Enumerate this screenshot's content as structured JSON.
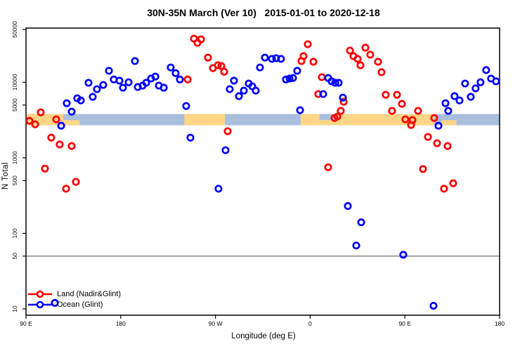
{
  "title": "30N-35N March (Ver 10)   2015-01-01 to 2020-12-18",
  "legend": {
    "items": [
      {
        "label": "Land (Nadir&Glint)",
        "color": "#ff0000"
      },
      {
        "label": "Ocean (Glint)",
        "color": "#0000ff"
      }
    ]
  },
  "chart_data": {
    "type": "scatter",
    "title": "30N-35N March (Ver 10)   2015-01-01 to 2020-12-18",
    "xlabel": "Longitude (deg E)",
    "ylabel": "N Total",
    "yscale": "log",
    "ylim": [
      8.2,
      52000
    ],
    "x_axis": {
      "range_deg": [
        90,
        540
      ],
      "tick_degs": [
        90,
        180,
        270,
        360,
        450,
        540
      ],
      "tick_labels": [
        "90 E",
        "180",
        "90 W",
        "0",
        "90 E",
        "180"
      ]
    },
    "y_axis": {
      "tick_values": [
        10,
        50,
        100,
        500,
        1000,
        5000,
        10000,
        50000
      ],
      "tick_labels": [
        "10",
        "50",
        "100",
        "500",
        "1000",
        "5000",
        "10000",
        "50000"
      ]
    },
    "reference_line": {
      "value": 50,
      "color": "#7a7a7a"
    },
    "land_ocean_band": {
      "description": "land/ocean coverage strip for 30N-35N",
      "value_low": 2700,
      "value_high": 3800,
      "ocean_color": "#a9bfdd",
      "land_color": "#ffd685",
      "land_segments": [
        {
          "deg_start": 90,
          "deg_end": 125.5,
          "part": "full"
        },
        {
          "deg_start": 125.5,
          "deg_end": 141,
          "part": "bottom"
        },
        {
          "deg_start": 240.5,
          "deg_end": 279,
          "part": "full"
        },
        {
          "deg_start": 351,
          "deg_end": 478,
          "part": "full"
        },
        {
          "deg_start": 485,
          "deg_end": 499,
          "part": "bottom"
        }
      ],
      "ocean_notches": [
        {
          "deg_start": 369,
          "deg_end": 386,
          "part": "top"
        }
      ]
    },
    "series": [
      {
        "name": "Land (Nadir&Glint)",
        "color": "#ff0000",
        "points": [
          [
            93.3,
            3090
          ],
          [
            98.7,
            2780
          ],
          [
            104,
            4000
          ],
          [
            118.7,
            3230
          ],
          [
            114,
            1850
          ],
          [
            122,
            1500
          ],
          [
            133.4,
            1430
          ],
          [
            108,
            720
          ],
          [
            128.1,
            390
          ],
          [
            137.4,
            480
          ],
          [
            249.6,
            37800
          ],
          [
            256.3,
            37000
          ],
          [
            252.9,
            33300
          ],
          [
            262.9,
            21200
          ],
          [
            267.6,
            15400
          ],
          [
            272.3,
            16800
          ],
          [
            275.6,
            16400
          ],
          [
            278.3,
            13800
          ],
          [
            243.6,
            10900
          ],
          [
            281.6,
            2250
          ],
          [
            357.7,
            31900
          ],
          [
            353.7,
            22200
          ],
          [
            351.7,
            19100
          ],
          [
            363.1,
            18700
          ],
          [
            371.1,
            11700
          ],
          [
            367.7,
            6980
          ],
          [
            391.8,
            5520
          ],
          [
            389.1,
            4180
          ],
          [
            385.8,
            3520
          ],
          [
            383.1,
            3370
          ],
          [
            377.1,
            750
          ],
          [
            397.8,
            26300
          ],
          [
            412.5,
            28700
          ],
          [
            401.1,
            22200
          ],
          [
            405.1,
            20400
          ],
          [
            417.1,
            23200
          ],
          [
            407.8,
            16800
          ],
          [
            424.5,
            18700
          ],
          [
            427.8,
            13600
          ],
          [
            431.8,
            6830
          ],
          [
            442.5,
            6830
          ],
          [
            447.2,
            5180
          ],
          [
            437.8,
            4180
          ],
          [
            462.5,
            4180
          ],
          [
            450.5,
            3230
          ],
          [
            457.2,
            3160
          ],
          [
            455.9,
            2720
          ],
          [
            477.9,
            3370
          ],
          [
            471.9,
            1890
          ],
          [
            480.6,
            1560
          ],
          [
            490.6,
            1430
          ],
          [
            467.2,
            710
          ],
          [
            487.2,
            390
          ],
          [
            495.9,
            460
          ]
        ]
      },
      {
        "name": "Ocean (Glint)",
        "color": "#0000ff",
        "points": [
          [
            123.4,
            2660
          ],
          [
            128.7,
            5280
          ],
          [
            133.4,
            4080
          ],
          [
            138.7,
            6140
          ],
          [
            142.1,
            5750
          ],
          [
            149.4,
            9840
          ],
          [
            153.4,
            6410
          ],
          [
            157.4,
            8110
          ],
          [
            163.4,
            9220
          ],
          [
            168.8,
            14200
          ],
          [
            173.4,
            10900
          ],
          [
            178.8,
            10500
          ],
          [
            182.1,
            8470
          ],
          [
            187.5,
            10000
          ],
          [
            193.5,
            19100
          ],
          [
            196.2,
            8650
          ],
          [
            200.8,
            9030
          ],
          [
            204.2,
            9840
          ],
          [
            208.8,
            11200
          ],
          [
            212.9,
            11900
          ],
          [
            216.2,
            9030
          ],
          [
            220.9,
            8470
          ],
          [
            227.5,
            15700
          ],
          [
            232.2,
            13200
          ],
          [
            236.2,
            10900
          ],
          [
            242.2,
            4850
          ],
          [
            246.2,
            1850
          ],
          [
            272.9,
            390
          ],
          [
            279.6,
            1260
          ],
          [
            283.6,
            8110
          ],
          [
            287.6,
            10500
          ],
          [
            292.3,
            6550
          ],
          [
            297,
            7760
          ],
          [
            301.6,
            9620
          ],
          [
            305,
            8830
          ],
          [
            308.3,
            7760
          ],
          [
            312.3,
            15700
          ],
          [
            317,
            21200
          ],
          [
            323.7,
            20400
          ],
          [
            327.7,
            20800
          ],
          [
            332.3,
            20400
          ],
          [
            337,
            10900
          ],
          [
            340.4,
            11200
          ],
          [
            343.7,
            11400
          ],
          [
            347.7,
            14200
          ],
          [
            350.4,
            4270
          ],
          [
            372.4,
            6980
          ],
          [
            377.1,
            11400
          ],
          [
            380.4,
            10300
          ],
          [
            383.8,
            9840
          ],
          [
            387.1,
            9840
          ],
          [
            391.1,
            6270
          ],
          [
            395.8,
            230
          ],
          [
            408.5,
            140
          ],
          [
            403.8,
            69
          ],
          [
            448.5,
            52
          ],
          [
            477.2,
            11
          ],
          [
            481.9,
            2660
          ],
          [
            488.6,
            5280
          ],
          [
            491.2,
            4180
          ],
          [
            497.2,
            6550
          ],
          [
            501.9,
            5750
          ],
          [
            507.2,
            9620
          ],
          [
            512.6,
            6410
          ],
          [
            517.2,
            8300
          ],
          [
            521.9,
            10000
          ],
          [
            527.2,
            14500
          ],
          [
            531.9,
            11200
          ],
          [
            536.6,
            10300
          ],
          [
            117.4,
            12
          ]
        ]
      }
    ]
  }
}
